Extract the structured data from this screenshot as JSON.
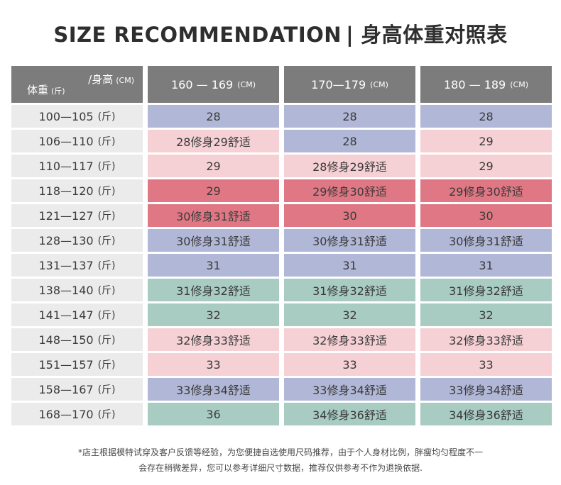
{
  "title": {
    "en": "SIZE RECOMMENDATION",
    "separator": "|",
    "zh": "身高体重对照表"
  },
  "corner": {
    "height_label": "/身高",
    "height_unit": "(CM)",
    "weight_label": "体重",
    "weight_unit": "(斤)"
  },
  "columns": [
    {
      "range": "160 — 169",
      "unit": "(CM)"
    },
    {
      "range": "170—179",
      "unit": "(CM)"
    },
    {
      "range": "180 — 189",
      "unit": "(CM)"
    }
  ],
  "weight_unit": "(斤)",
  "colors": {
    "purple": "#b1b7d6",
    "light_pink": "#f5d0d4",
    "dark_pink": "#df7884",
    "green": "#a8cbc2",
    "header_gray": "#7c7c7c",
    "rowhead_gray": "#ebebeb"
  },
  "chart_data": {
    "type": "table",
    "title": "SIZE RECOMMENDATION | 身高体重对照表",
    "column_headers": [
      "160 — 169 (CM)",
      "170—179 (CM)",
      "180 — 189 (CM)"
    ],
    "rows": [
      {
        "weight": "100—105",
        "sizes": [
          "28",
          "28",
          "28"
        ],
        "colors": [
          "purple",
          "purple",
          "purple"
        ]
      },
      {
        "weight": "106—110",
        "sizes": [
          "28修身29舒适",
          "28",
          "29"
        ],
        "colors": [
          "light_pink",
          "purple",
          "light_pink"
        ]
      },
      {
        "weight": "110—117",
        "sizes": [
          "29",
          "28修身29舒适",
          "29"
        ],
        "colors": [
          "light_pink",
          "light_pink",
          "light_pink"
        ]
      },
      {
        "weight": "118—120",
        "sizes": [
          "29",
          "29修身30舒适",
          "29修身30舒适"
        ],
        "colors": [
          "dark_pink",
          "dark_pink",
          "dark_pink"
        ]
      },
      {
        "weight": "121—127",
        "sizes": [
          "30修身31舒适",
          "30",
          "30"
        ],
        "colors": [
          "dark_pink",
          "dark_pink",
          "dark_pink"
        ]
      },
      {
        "weight": "128—130",
        "sizes": [
          "30修身31舒适",
          "30修身31舒适",
          "30修身31舒适"
        ],
        "colors": [
          "purple",
          "purple",
          "purple"
        ]
      },
      {
        "weight": "131—137",
        "sizes": [
          "31",
          "31",
          "31"
        ],
        "colors": [
          "purple",
          "purple",
          "purple"
        ]
      },
      {
        "weight": "138—140",
        "sizes": [
          "31修身32舒适",
          "31修身32舒适",
          "31修身32舒适"
        ],
        "colors": [
          "green",
          "green",
          "green"
        ]
      },
      {
        "weight": "141—147",
        "sizes": [
          "32",
          "32",
          "32"
        ],
        "colors": [
          "green",
          "green",
          "green"
        ]
      },
      {
        "weight": "148—150",
        "sizes": [
          "32修身33舒适",
          "32修身33舒适",
          "32修身33舒适"
        ],
        "colors": [
          "light_pink",
          "light_pink",
          "light_pink"
        ]
      },
      {
        "weight": "151—157",
        "sizes": [
          "33",
          "33",
          "33"
        ],
        "colors": [
          "light_pink",
          "light_pink",
          "light_pink"
        ]
      },
      {
        "weight": "158—167",
        "sizes": [
          "33修身34舒适",
          "33修身34舒适",
          "33修身34舒适"
        ],
        "colors": [
          "purple",
          "purple",
          "purple"
        ]
      },
      {
        "weight": "168—170",
        "sizes": [
          "36",
          "34修身36舒适",
          "34修身36舒适"
        ],
        "colors": [
          "green",
          "green",
          "green"
        ]
      }
    ]
  },
  "notes": [
    "*店主根据模特试穿及客户反馈等经验，为您便捷自选使用尺码推荐，由于个人身材比例，胖瘦均匀程度不一",
    "会存在稍微差异，您可以参考详细尺寸数据，推荐仅供参考不作为退换依据."
  ]
}
